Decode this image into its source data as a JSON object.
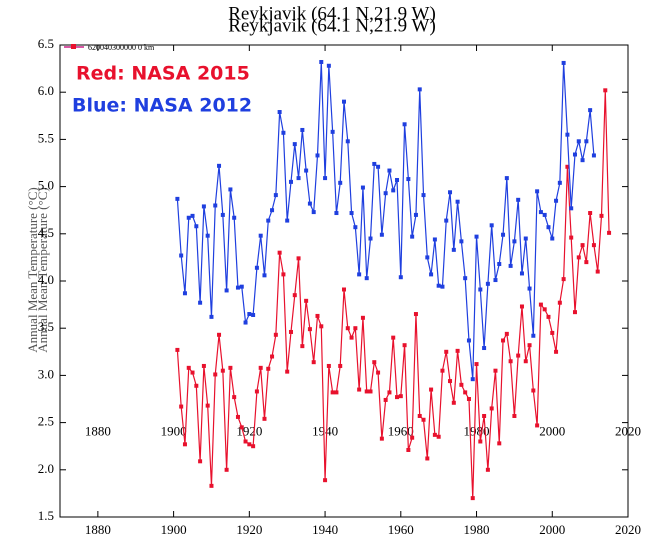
{
  "chart_data": {
    "type": "line",
    "title": "Reykjavik (64.1 N,21.9 W)",
    "ylabel": "Annual Mean Temperature (°C)",
    "legend_label": "620040300000 0 km",
    "annotations": [
      "Red: NASA 2015",
      "Blue: NASA 2012"
    ],
    "xlim": [
      1870,
      2020
    ],
    "ylim": [
      1.5,
      6.5
    ],
    "xticks": [
      1880,
      1900,
      1920,
      1940,
      1960,
      1980,
      2000,
      2020
    ],
    "yticks": [
      1.5,
      {
        "value": 2,
        "label": "2.0"
      },
      2.5,
      {
        "value": 3,
        "label": "3.0"
      },
      3.5,
      {
        "value": 4,
        "label": "4.0"
      },
      4.5,
      {
        "value": 5,
        "label": "5.0"
      },
      5.5,
      {
        "value": 6,
        "label": "6.0"
      },
      6.5
    ],
    "series": [
      {
        "name": "Red: NASA 2015",
        "color": "#e8112d",
        "x": [
          1901,
          1902,
          1903,
          1904,
          1905,
          1906,
          1907,
          1908,
          1909,
          1910,
          1911,
          1912,
          1913,
          1914,
          1915,
          1916,
          1917,
          1918,
          1919,
          1920,
          1921,
          1922,
          1923,
          1924,
          1925,
          1926,
          1927,
          1928,
          1929,
          1930,
          1931,
          1932,
          1933,
          1934,
          1935,
          1936,
          1937,
          1938,
          1939,
          1940,
          1941,
          1942,
          1943,
          1944,
          1945,
          1946,
          1947,
          1948,
          1949,
          1950,
          1951,
          1952,
          1953,
          1954,
          1955,
          1956,
          1957,
          1958,
          1959,
          1960,
          1961,
          1962,
          1963,
          1964,
          1965,
          1966,
          1967,
          1968,
          1969,
          1970,
          1971,
          1972,
          1973,
          1974,
          1975,
          1976,
          1977,
          1978,
          1979,
          1980,
          1981,
          1982,
          1983,
          1984,
          1985,
          1986,
          1987,
          1988,
          1989,
          1990,
          1991,
          1992,
          1993,
          1994,
          1995,
          1996,
          1997,
          1998,
          1999,
          2000,
          2001,
          2002,
          2003,
          2004,
          2005,
          2006,
          2007,
          2008,
          2009,
          2010,
          2011,
          2012,
          2013,
          2014,
          2015
        ],
        "values": [
          3.27,
          2.67,
          2.27,
          3.08,
          3.03,
          2.89,
          2.09,
          3.1,
          2.68,
          1.83,
          3.01,
          3.43,
          3.05,
          2.0,
          3.08,
          2.77,
          2.56,
          2.45,
          2.3,
          2.27,
          2.25,
          2.83,
          3.08,
          2.54,
          3.07,
          3.2,
          3.43,
          4.3,
          4.07,
          3.04,
          3.46,
          3.85,
          4.24,
          3.31,
          3.79,
          3.49,
          3.14,
          3.63,
          3.52,
          1.89,
          3.1,
          2.82,
          2.82,
          3.1,
          3.91,
          3.5,
          3.4,
          3.5,
          2.85,
          3.61,
          2.83,
          2.83,
          3.14,
          3.03,
          2.33,
          2.74,
          2.82,
          3.4,
          2.77,
          2.78,
          3.32,
          2.21,
          2.34,
          3.65,
          2.57,
          2.53,
          2.12,
          2.85,
          2.37,
          2.35,
          3.05,
          3.25,
          2.94,
          2.71,
          3.26,
          2.9,
          2.82,
          2.75,
          1.7,
          3.12,
          2.3,
          2.57,
          2.0,
          2.65,
          3.05,
          2.28,
          3.37,
          3.44,
          3.15,
          2.57,
          3.21,
          3.73,
          3.15,
          3.32,
          2.84,
          2.47,
          3.75,
          3.7,
          3.62,
          3.45,
          3.25,
          3.77,
          4.02,
          5.21,
          4.46,
          3.67,
          4.25,
          4.38,
          4.2,
          4.72,
          4.38,
          4.1,
          4.69,
          6.02,
          4.51
        ]
      },
      {
        "name": "Blue: NASA 2012",
        "color": "#1f3fdf",
        "x": [
          1901,
          1902,
          1903,
          1904,
          1905,
          1906,
          1907,
          1908,
          1909,
          1910,
          1911,
          1912,
          1913,
          1914,
          1915,
          1916,
          1917,
          1918,
          1919,
          1920,
          1921,
          1922,
          1923,
          1924,
          1925,
          1926,
          1927,
          1928,
          1929,
          1930,
          1931,
          1932,
          1933,
          1934,
          1935,
          1936,
          1937,
          1938,
          1939,
          1940,
          1941,
          1942,
          1943,
          1944,
          1945,
          1946,
          1947,
          1948,
          1949,
          1950,
          1951,
          1952,
          1953,
          1954,
          1955,
          1956,
          1957,
          1958,
          1959,
          1960,
          1961,
          1962,
          1963,
          1964,
          1965,
          1966,
          1967,
          1968,
          1969,
          1970,
          1971,
          1972,
          1973,
          1974,
          1975,
          1976,
          1977,
          1978,
          1979,
          1980,
          1981,
          1982,
          1983,
          1984,
          1985,
          1986,
          1987,
          1988,
          1989,
          1990,
          1991,
          1992,
          1993,
          1994,
          1995,
          1996,
          1997,
          1998,
          1999,
          2000,
          2001,
          2002,
          2003,
          2004,
          2005,
          2006,
          2007,
          2008,
          2009,
          2010,
          2011
        ],
        "values": [
          4.87,
          4.27,
          3.87,
          4.67,
          4.69,
          4.58,
          3.77,
          4.79,
          4.48,
          3.62,
          4.8,
          5.22,
          4.7,
          3.9,
          4.97,
          4.67,
          3.93,
          3.94,
          3.56,
          3.65,
          3.64,
          4.14,
          4.48,
          4.06,
          4.64,
          4.75,
          4.91,
          5.79,
          5.57,
          4.64,
          5.05,
          5.45,
          5.09,
          5.6,
          5.17,
          4.82,
          4.73,
          5.33,
          6.32,
          5.09,
          6.28,
          5.58,
          4.72,
          5.04,
          5.9,
          5.48,
          4.72,
          4.57,
          4.07,
          4.99,
          4.03,
          4.45,
          5.24,
          5.21,
          4.49,
          4.93,
          5.17,
          4.96,
          5.07,
          4.04,
          5.66,
          5.08,
          4.47,
          4.7,
          6.03,
          4.91,
          4.25,
          4.07,
          4.44,
          3.95,
          3.94,
          4.64,
          4.94,
          4.33,
          4.84,
          4.42,
          4.03,
          3.37,
          2.96,
          4.47,
          3.91,
          3.29,
          3.97,
          4.59,
          4.01,
          4.18,
          4.49,
          5.09,
          4.16,
          4.42,
          4.86,
          4.08,
          4.45,
          3.92,
          3.42,
          4.95,
          4.73,
          4.7,
          4.57,
          4.45,
          4.85,
          5.04,
          6.31,
          5.55,
          4.77,
          5.34,
          5.48,
          5.28,
          5.48,
          5.81,
          5.33
        ]
      }
    ]
  }
}
